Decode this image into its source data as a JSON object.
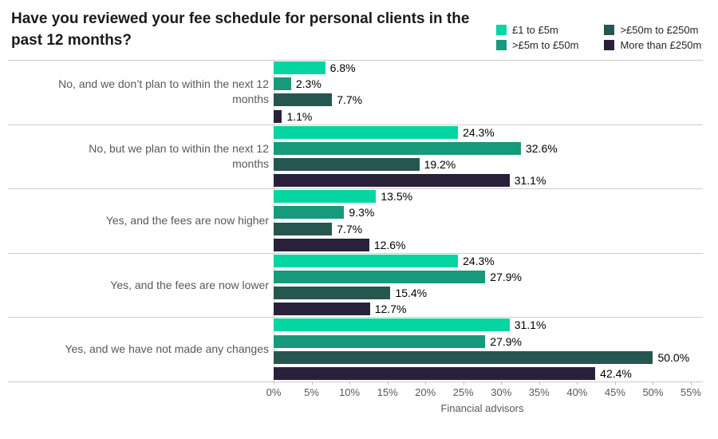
{
  "title": "Have you reviewed your fee schedule for personal clients in the past 12 months?",
  "colors": {
    "background": "#ffffff",
    "title_text": "#1a1a1a",
    "category_text": "#595959",
    "axis_text": "#595959",
    "data_label_text": "#000000",
    "grid_line": "#cccccc"
  },
  "chart_data": {
    "type": "bar",
    "orientation": "horizontal",
    "title": "Have you reviewed your fee schedule for personal clients in the past 12 months?",
    "xlabel": "Financial advisors",
    "ylabel": "",
    "xlim": [
      0,
      55
    ],
    "x_ticks": [
      "0%",
      "5%",
      "10%",
      "15%",
      "20%",
      "25%",
      "30%",
      "35%",
      "40%",
      "45%",
      "50%",
      "55%"
    ],
    "grid": false,
    "legend_position": "top-right",
    "value_suffix": "%",
    "value_decimals": 1,
    "categories": [
      "No, and we don’t plan to within the next 12 months",
      "No, but we plan to within the next 12 months",
      "Yes, and the fees are now higher",
      "Yes, and the fees are now lower",
      "Yes, and we have not made any changes"
    ],
    "series": [
      {
        "name": "£1 to £5m",
        "color": "#05d6a1",
        "values": [
          6.8,
          24.3,
          13.5,
          24.3,
          31.1
        ]
      },
      {
        "name": ">£5m to £50m",
        "color": "#17997b",
        "values": [
          2.3,
          32.6,
          9.3,
          27.9,
          27.9
        ]
      },
      {
        "name": ">£50m to £250m",
        "color": "#25564f",
        "values": [
          7.7,
          19.2,
          7.7,
          15.4,
          50.0
        ]
      },
      {
        "name": "More than £250m",
        "color": "#29213a",
        "values": [
          1.1,
          31.1,
          12.6,
          12.7,
          42.4
        ]
      }
    ]
  }
}
